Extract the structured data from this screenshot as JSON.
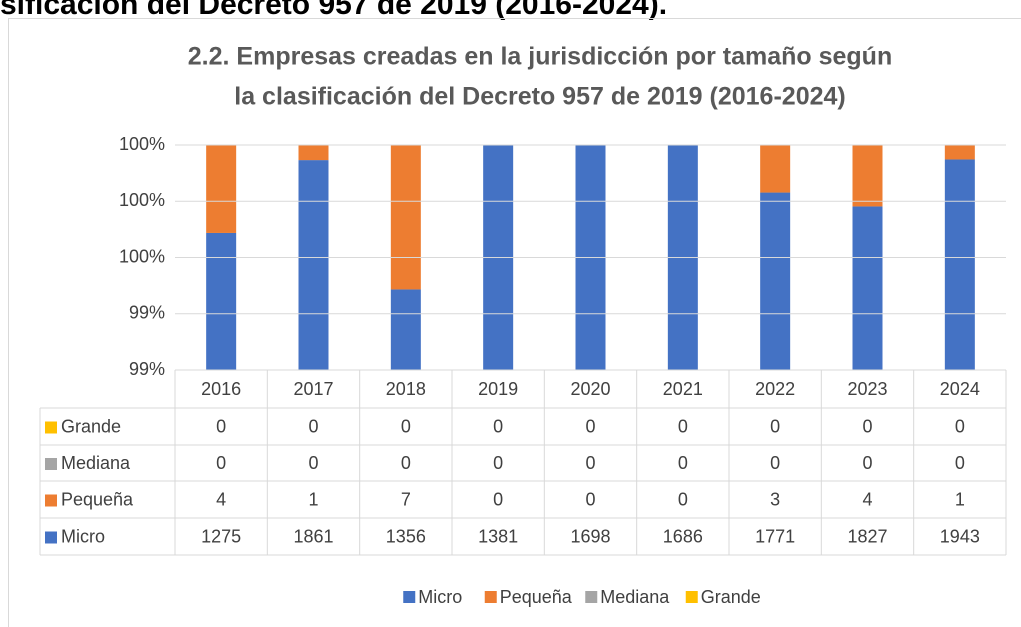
{
  "heading": "sificación del Decreto 957 de 2019 (2016-2024).",
  "chart_data": {
    "type": "stacked_bar_100",
    "title": [
      "2.2.  Empresas creadas en la jurisdicción por tamaño según",
      "la clasificación del Decreto 957 de 2019 (2016-2024)"
    ],
    "categories": [
      "2016",
      "2017",
      "2018",
      "2019",
      "2020",
      "2021",
      "2022",
      "2023",
      "2024"
    ],
    "series": [
      {
        "name": "Micro",
        "color": "#4472c4",
        "values": [
          1275,
          1861,
          1356,
          1381,
          1698,
          1686,
          1771,
          1827,
          1943
        ]
      },
      {
        "name": "Pequeña",
        "color": "#ed7d31",
        "values": [
          4,
          1,
          7,
          0,
          0,
          0,
          3,
          4,
          1
        ]
      },
      {
        "name": "Mediana",
        "color": "#a5a5a5",
        "values": [
          0,
          0,
          0,
          0,
          0,
          0,
          0,
          0,
          0
        ]
      },
      {
        "name": "Grande",
        "color": "#ffc000",
        "values": [
          0,
          0,
          0,
          0,
          0,
          0,
          0,
          0,
          0
        ]
      }
    ],
    "ylim": [
      99.2,
      100
    ],
    "yticks": [
      {
        "value": 99.2,
        "label": "99%"
      },
      {
        "value": 99.4,
        "label": "99%"
      },
      {
        "value": 99.6,
        "label": "100%"
      },
      {
        "value": 99.8,
        "label": "100%"
      },
      {
        "value": 100,
        "label": "100%"
      }
    ],
    "grid": true,
    "legend": "bottom",
    "data_table": true
  }
}
